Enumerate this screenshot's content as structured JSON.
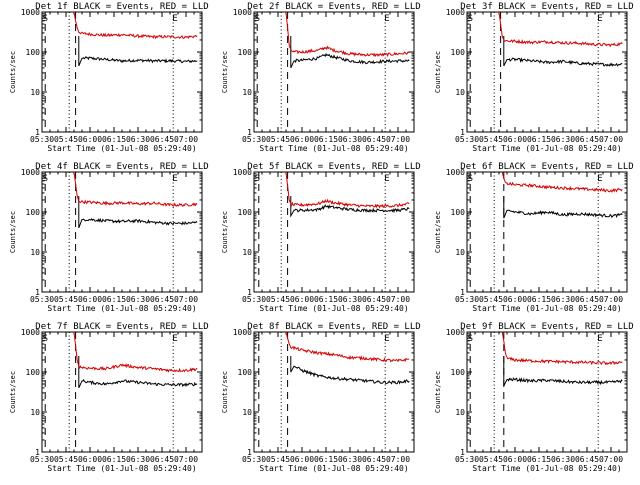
{
  "colors": {
    "events": "#000000",
    "lld": "#d40000",
    "axes": "#000000",
    "background": "#ffffff"
  },
  "chart_data": [
    {
      "type": "line",
      "title": "Det 1f BLACK = Events, RED = LLD",
      "xlabel": "Start Time (01-Jul-08 05:29:40)",
      "ylabel": "Counts/sec",
      "yscale": "log",
      "ylim": [
        1,
        1000
      ],
      "xlim": [
        "05:30",
        "07:10"
      ],
      "xticks": [
        "05:30",
        "05:45",
        "06:00",
        "06:15",
        "06:30",
        "06:45",
        "07:00"
      ],
      "yticks": [
        "1",
        "10",
        "100",
        "1000"
      ],
      "markers": [
        {
          "label": "S",
          "x": "05:31"
        },
        {
          "label": "E",
          "x": "06:52"
        }
      ],
      "dashed_x": [
        "05:32",
        "05:51"
      ],
      "dotted_x": [
        "05:47",
        "06:52"
      ],
      "series": [
        {
          "name": "Events",
          "x": [
            "05:53",
            "05:55",
            "06:00",
            "06:10",
            "06:20",
            "06:30",
            "06:40",
            "06:50",
            "07:00",
            "07:07"
          ],
          "values": [
            45,
            70,
            70,
            65,
            60,
            62,
            60,
            60,
            58,
            60
          ]
        },
        {
          "name": "LLD",
          "x": [
            "05:50",
            "05:51",
            "05:52",
            "05:53",
            "05:55",
            "06:00",
            "06:10",
            "06:20",
            "06:30",
            "06:40",
            "06:50",
            "07:00",
            "07:07"
          ],
          "values": [
            1000,
            600,
            400,
            320,
            290,
            280,
            260,
            270,
            250,
            240,
            240,
            235,
            250
          ]
        }
      ]
    },
    {
      "type": "line",
      "title": "Det 2f BLACK = Events, RED = LLD",
      "xlabel": "Start Time (01-Jul-08 05:29:40)",
      "ylabel": "Counts/sec",
      "yscale": "log",
      "ylim": [
        1,
        1000
      ],
      "xlim": [
        "05:30",
        "07:10"
      ],
      "xticks": [
        "05:30",
        "05:45",
        "06:00",
        "06:15",
        "06:30",
        "06:45",
        "07:00"
      ],
      "yticks": [
        "1",
        "10",
        "100",
        "1000"
      ],
      "markers": [
        {
          "label": "S",
          "x": "05:31"
        },
        {
          "label": "E",
          "x": "06:52"
        }
      ],
      "dashed_x": [
        "05:32",
        "05:51"
      ],
      "dotted_x": [
        "05:47",
        "06:52"
      ],
      "series": [
        {
          "name": "Events",
          "x": [
            "05:53",
            "05:55",
            "06:00",
            "06:10",
            "06:15",
            "06:20",
            "06:30",
            "06:40",
            "06:50",
            "07:00",
            "07:07"
          ],
          "values": [
            40,
            60,
            62,
            70,
            85,
            75,
            60,
            55,
            58,
            60,
            60
          ]
        },
        {
          "name": "LLD",
          "x": [
            "05:50",
            "05:51",
            "05:52",
            "05:53",
            "05:55",
            "06:00",
            "06:10",
            "06:15",
            "06:20",
            "06:30",
            "06:40",
            "06:50",
            "07:00",
            "07:07"
          ],
          "values": [
            1000,
            400,
            150,
            110,
            100,
            100,
            110,
            130,
            110,
            90,
            85,
            85,
            90,
            95
          ]
        }
      ]
    },
    {
      "type": "line",
      "title": "Det 3f BLACK = Events, RED = LLD",
      "xlabel": "Start Time (01-Jul-08 05:29:40)",
      "ylabel": "Counts/sec",
      "yscale": "log",
      "ylim": [
        1,
        1000
      ],
      "xlim": [
        "05:30",
        "07:10"
      ],
      "xticks": [
        "05:30",
        "05:45",
        "06:00",
        "06:15",
        "06:30",
        "06:45",
        "07:00"
      ],
      "yticks": [
        "1",
        "10",
        "100",
        "1000"
      ],
      "markers": [
        {
          "label": "S",
          "x": "05:31"
        },
        {
          "label": "E",
          "x": "06:52"
        }
      ],
      "dashed_x": [
        "05:32",
        "05:51"
      ],
      "dotted_x": [
        "05:47",
        "06:52"
      ],
      "series": [
        {
          "name": "Events",
          "x": [
            "05:53",
            "05:55",
            "06:00",
            "06:10",
            "06:20",
            "06:30",
            "06:40",
            "06:50",
            "07:00",
            "07:07"
          ],
          "values": [
            45,
            65,
            65,
            60,
            55,
            58,
            52,
            50,
            48,
            50
          ]
        },
        {
          "name": "LLD",
          "x": [
            "05:50",
            "05:51",
            "05:52",
            "05:53",
            "05:55",
            "06:00",
            "06:10",
            "06:20",
            "06:30",
            "06:40",
            "06:50",
            "07:00",
            "07:07"
          ],
          "values": [
            1000,
            500,
            250,
            200,
            190,
            185,
            175,
            180,
            170,
            165,
            155,
            150,
            160
          ]
        }
      ]
    },
    {
      "type": "line",
      "title": "Det 4f BLACK = Events, RED = LLD",
      "xlabel": "Start Time (01-Jul-08 05:29:40)",
      "ylabel": "Counts/sec",
      "yscale": "log",
      "ylim": [
        1,
        1000
      ],
      "xlim": [
        "05:30",
        "07:10"
      ],
      "xticks": [
        "05:30",
        "05:45",
        "06:00",
        "06:15",
        "06:30",
        "06:45",
        "07:00"
      ],
      "yticks": [
        "1",
        "10",
        "100",
        "1000"
      ],
      "markers": [
        {
          "label": "S",
          "x": "05:31"
        },
        {
          "label": "E",
          "x": "06:52"
        }
      ],
      "dashed_x": [
        "05:32",
        "05:51"
      ],
      "dotted_x": [
        "05:47",
        "06:52"
      ],
      "series": [
        {
          "name": "Events",
          "x": [
            "05:53",
            "05:55",
            "06:00",
            "06:10",
            "06:20",
            "06:30",
            "06:40",
            "06:50",
            "07:00",
            "07:07"
          ],
          "values": [
            40,
            65,
            65,
            60,
            58,
            60,
            55,
            52,
            52,
            55
          ]
        },
        {
          "name": "LLD",
          "x": [
            "05:50",
            "05:51",
            "05:52",
            "05:53",
            "05:55",
            "06:00",
            "06:10",
            "06:20",
            "06:30",
            "06:40",
            "06:50",
            "07:00",
            "07:07"
          ],
          "values": [
            1000,
            500,
            250,
            190,
            180,
            175,
            165,
            170,
            160,
            165,
            150,
            150,
            160
          ]
        }
      ]
    },
    {
      "type": "line",
      "title": "Det 5f BLACK = Events, RED = LLD",
      "xlabel": "Start Time (01-Jul-08 05:29:40)",
      "ylabel": "Counts/sec",
      "yscale": "log",
      "ylim": [
        1,
        1000
      ],
      "xlim": [
        "05:30",
        "07:10"
      ],
      "xticks": [
        "05:30",
        "05:45",
        "06:00",
        "06:15",
        "06:30",
        "06:45",
        "07:00"
      ],
      "yticks": [
        "1",
        "10",
        "100",
        "1000"
      ],
      "markers": [
        {
          "label": "S",
          "x": "05:31"
        },
        {
          "label": "E",
          "x": "06:52"
        }
      ],
      "dashed_x": [
        "05:33",
        "05:51"
      ],
      "dotted_x": [
        "05:47",
        "06:52"
      ],
      "series": [
        {
          "name": "Events",
          "x": [
            "05:53",
            "05:55",
            "06:00",
            "06:10",
            "06:15",
            "06:20",
            "06:30",
            "06:40",
            "06:50",
            "07:00",
            "07:07"
          ],
          "values": [
            80,
            110,
            110,
            115,
            140,
            130,
            115,
            110,
            110,
            110,
            120
          ]
        },
        {
          "name": "LLD",
          "x": [
            "05:50",
            "05:51",
            "05:52",
            "05:53",
            "05:55",
            "06:00",
            "06:10",
            "06:15",
            "06:20",
            "06:30",
            "06:40",
            "06:50",
            "07:00",
            "07:07"
          ],
          "values": [
            1000,
            450,
            200,
            160,
            150,
            150,
            160,
            190,
            170,
            150,
            140,
            140,
            145,
            160
          ]
        }
      ]
    },
    {
      "type": "line",
      "title": "Det 6f BLACK = Events, RED = LLD",
      "xlabel": "Start Time (01-Jul-08 05:29:40)",
      "ylabel": "Counts/sec",
      "yscale": "log",
      "ylim": [
        1,
        1000
      ],
      "xlim": [
        "05:30",
        "07:10"
      ],
      "xticks": [
        "05:30",
        "05:45",
        "06:00",
        "06:15",
        "06:30",
        "06:45",
        "07:00"
      ],
      "yticks": [
        "1",
        "10",
        "100",
        "1000"
      ],
      "markers": [
        {
          "label": "S",
          "x": "05:31"
        },
        {
          "label": "E",
          "x": "06:52"
        }
      ],
      "dashed_x": [
        "05:32",
        "05:53"
      ],
      "dotted_x": [
        "05:47",
        "06:52"
      ],
      "series": [
        {
          "name": "Events",
          "x": [
            "05:53",
            "05:55",
            "06:00",
            "06:10",
            "06:20",
            "06:30",
            "06:40",
            "06:50",
            "07:00",
            "07:07"
          ],
          "values": [
            70,
            110,
            100,
            90,
            100,
            85,
            90,
            85,
            80,
            85
          ]
        },
        {
          "name": "LLD",
          "x": [
            "05:52",
            "05:53",
            "05:54",
            "05:55",
            "06:00",
            "06:10",
            "06:20",
            "06:30",
            "06:40",
            "06:50",
            "07:00",
            "07:07"
          ],
          "values": [
            1000,
            700,
            550,
            520,
            480,
            460,
            420,
            400,
            380,
            360,
            340,
            370
          ]
        }
      ]
    },
    {
      "type": "line",
      "title": "Det 7f BLACK = Events, RED = LLD",
      "xlabel": "Start Time (01-Jul-08 05:29:40)",
      "ylabel": "Counts/sec",
      "yscale": "log",
      "ylim": [
        1,
        1000
      ],
      "xlim": [
        "05:30",
        "07:10"
      ],
      "xticks": [
        "05:30",
        "05:45",
        "06:00",
        "06:15",
        "06:30",
        "06:45",
        "07:00"
      ],
      "yticks": [
        "1",
        "10",
        "100",
        "1000"
      ],
      "markers": [
        {
          "label": "S",
          "x": "05:31"
        },
        {
          "label": "E",
          "x": "06:52"
        }
      ],
      "dashed_x": [
        "05:32",
        "05:51"
      ],
      "dotted_x": [
        "05:47",
        "06:52"
      ],
      "series": [
        {
          "name": "Events",
          "x": [
            "05:53",
            "05:55",
            "06:00",
            "06:10",
            "06:20",
            "06:30",
            "06:40",
            "06:50",
            "07:00",
            "07:07"
          ],
          "values": [
            40,
            60,
            55,
            50,
            60,
            55,
            50,
            48,
            48,
            50
          ]
        },
        {
          "name": "LLD",
          "x": [
            "05:50",
            "05:51",
            "05:52",
            "05:53",
            "05:55",
            "06:00",
            "06:10",
            "06:20",
            "06:30",
            "06:40",
            "06:50",
            "07:00",
            "07:07"
          ],
          "values": [
            1000,
            450,
            200,
            140,
            130,
            125,
            120,
            150,
            130,
            120,
            110,
            110,
            120
          ]
        }
      ]
    },
    {
      "type": "line",
      "title": "Det 8f BLACK = Events, RED = LLD",
      "xlabel": "Start Time (01-Jul-08 05:29:40)",
      "ylabel": "Counts/sec",
      "yscale": "log",
      "ylim": [
        1,
        1000
      ],
      "xlim": [
        "05:30",
        "07:10"
      ],
      "xticks": [
        "05:30",
        "05:45",
        "06:00",
        "06:15",
        "06:30",
        "06:45",
        "07:00"
      ],
      "yticks": [
        "1",
        "10",
        "100",
        "1000"
      ],
      "markers": [
        {
          "label": "S",
          "x": "05:31"
        },
        {
          "label": "E",
          "x": "06:52"
        }
      ],
      "dashed_x": [
        "05:33",
        "05:51"
      ],
      "dotted_x": [
        "05:47",
        "06:52"
      ],
      "series": [
        {
          "name": "Events",
          "x": [
            "05:53",
            "05:55",
            "06:00",
            "06:10",
            "06:20",
            "06:30",
            "06:40",
            "06:50",
            "07:00",
            "07:07"
          ],
          "values": [
            100,
            140,
            110,
            80,
            70,
            65,
            60,
            55,
            55,
            60
          ]
        },
        {
          "name": "LLD",
          "x": [
            "05:50",
            "05:51",
            "05:52",
            "05:53",
            "05:55",
            "06:00",
            "06:10",
            "06:20",
            "06:30",
            "06:40",
            "06:50",
            "07:00",
            "07:07"
          ],
          "values": [
            1000,
            700,
            500,
            420,
            400,
            350,
            300,
            270,
            230,
            220,
            200,
            190,
            210
          ]
        }
      ]
    },
    {
      "type": "line",
      "title": "Det 9f BLACK = Events, RED = LLD",
      "xlabel": "Start Time (01-Jul-08 05:29:40)",
      "ylabel": "Counts/sec",
      "yscale": "log",
      "ylim": [
        1,
        1000
      ],
      "xlim": [
        "05:30",
        "07:10"
      ],
      "xticks": [
        "05:30",
        "05:45",
        "06:00",
        "06:15",
        "06:30",
        "06:45",
        "07:00"
      ],
      "yticks": [
        "1",
        "10",
        "100",
        "1000"
      ],
      "markers": [
        {
          "label": "S",
          "x": "05:31"
        },
        {
          "label": "E",
          "x": "06:52"
        }
      ],
      "dashed_x": [
        "05:32",
        "05:53"
      ],
      "dotted_x": [
        "05:47",
        "06:52"
      ],
      "series": [
        {
          "name": "Events",
          "x": [
            "05:53",
            "05:55",
            "06:00",
            "06:10",
            "06:20",
            "06:30",
            "06:40",
            "06:50",
            "07:00",
            "07:07"
          ],
          "values": [
            45,
            65,
            65,
            60,
            62,
            58,
            55,
            55,
            55,
            60
          ]
        },
        {
          "name": "LLD",
          "x": [
            "05:52",
            "05:53",
            "05:54",
            "05:55",
            "06:00",
            "06:10",
            "06:20",
            "06:30",
            "06:40",
            "06:50",
            "07:00",
            "07:07"
          ],
          "values": [
            1000,
            600,
            300,
            220,
            200,
            190,
            185,
            180,
            175,
            170,
            165,
            180
          ]
        }
      ]
    }
  ]
}
